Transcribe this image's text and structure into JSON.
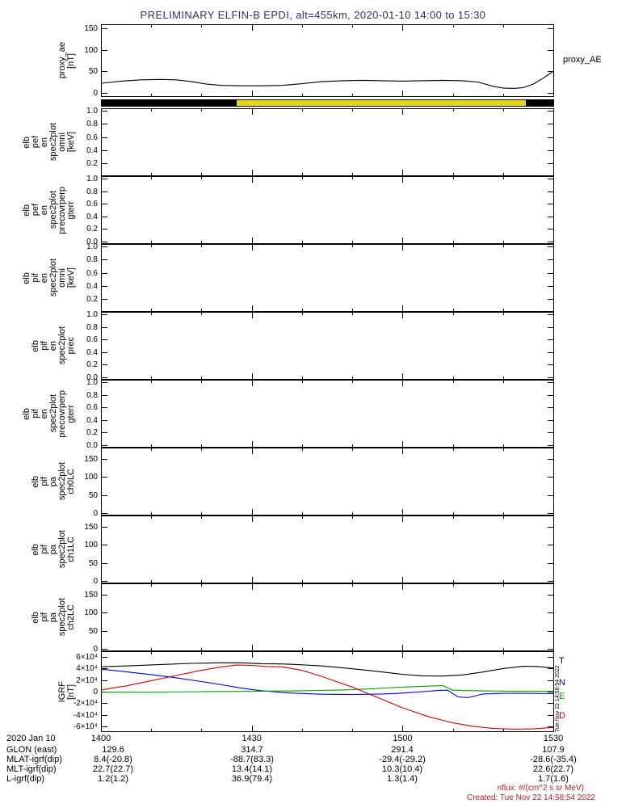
{
  "title": "PRELIMINARY ELFIN-B EPDI, alt=455km, 2020-01-10 14:00 to 15:30",
  "colors": {
    "background": "#ffffff",
    "title": "#2f2f6f",
    "axis": "#000000",
    "band_yellow": "#e8d518",
    "band_black": "#000000",
    "trace_T": "#000000",
    "trace_N": "#0000e0",
    "trace_E": "#00a000",
    "trace_D": "#cc0000",
    "footer_note": "#b22222"
  },
  "x_axis": {
    "date_label": "2020 Jan 10",
    "ticks": [
      "1400",
      "1430",
      "1500",
      "1530"
    ],
    "tick_minutes": [
      0,
      30,
      60,
      90
    ],
    "minor_tick_minutes": [
      10,
      20,
      40,
      50,
      70,
      80
    ],
    "range_minutes": [
      0,
      90
    ]
  },
  "footer_rows": [
    {
      "label": "GLON (east)",
      "values": [
        "129.6",
        "314.7",
        "291.4",
        "107.9"
      ]
    },
    {
      "label": "MLAT-igrf(dip)",
      "values": [
        "8.4(-20.8)",
        "-88.7(83.3)",
        "-29.4(-29.2)",
        "-28.6(-35.4)"
      ]
    },
    {
      "label": "MLT-igrf(dip)",
      "values": [
        "22.7(22.7)",
        "13.4(14.1)",
        "10.3(10.4)",
        "22.6(22.7)"
      ]
    },
    {
      "label": "L-igrf(dip)",
      "values": [
        "1.2(1.2)",
        "36.9(79.4)",
        "1.3(1.4)",
        "1.7(1.6)"
      ]
    }
  ],
  "footer": {
    "nflux": "nflux: #/(cm^2 s sr MeV)",
    "created": "Created: Tue Nov 22 14:58:54 2022",
    "side_timestamp": "Tue Nov 22 14:58:54 2022"
  },
  "chart_data": [
    {
      "id": "proxy-ae",
      "type": "line",
      "ylabel_lines": [
        "proxy_ae",
        "[nT]"
      ],
      "right_label": "proxy_AE",
      "ylim": [
        -10,
        160
      ],
      "yticks": [
        {
          "value": 150,
          "label": "150"
        },
        {
          "value": 100,
          "label": "100"
        },
        {
          "value": 50,
          "label": "50"
        },
        {
          "value": 0,
          "label": "0"
        }
      ],
      "series": [
        {
          "name": "proxy_AE",
          "color": "#000000",
          "x": [
            0,
            4,
            8,
            12,
            15,
            18,
            21,
            24,
            28,
            32,
            36,
            40,
            44,
            48,
            52,
            56,
            60,
            64,
            68,
            72,
            75,
            78,
            80,
            82,
            84,
            86,
            88,
            90
          ],
          "y": [
            22,
            27,
            30,
            31,
            30,
            26,
            20,
            17,
            16,
            16,
            17,
            21,
            26,
            28,
            29,
            28,
            27,
            28,
            29,
            28,
            25,
            15,
            11,
            10,
            12,
            20,
            34,
            50
          ]
        }
      ]
    },
    {
      "id": "status-band",
      "type": "band",
      "segments": [
        {
          "x0": 0,
          "x1": 27,
          "color": "#000000"
        },
        {
          "x0": 27,
          "x1": 84.5,
          "color": "#e8d518"
        },
        {
          "x0": 84.5,
          "x1": 90,
          "color": "#000000"
        }
      ]
    },
    {
      "id": "elb-pef-en-spec2plot-omni",
      "type": "spectrogram-empty",
      "ylabel_lines": [
        "elb",
        "pef",
        "en",
        "spec2plot",
        "omni",
        "[keV]"
      ],
      "ylim": [
        0,
        1.04
      ],
      "yticks": [
        {
          "value": 1.0,
          "label": "1.0"
        },
        {
          "value": 0.8,
          "label": "0.8"
        },
        {
          "value": 0.6,
          "label": "0.6"
        },
        {
          "value": 0.4,
          "label": "0.4"
        },
        {
          "value": 0.2,
          "label": "0.2"
        }
      ]
    },
    {
      "id": "elb-pef-en-spec2plot-precovrperp-gterr",
      "type": "spectrogram-empty",
      "ylabel_lines": [
        "elb",
        "pef",
        "en",
        "spec2plot",
        "precovrperp",
        "gterr"
      ],
      "ylim": [
        -0.04,
        1.04
      ],
      "yticks": [
        {
          "value": 1.0,
          "label": "1.0"
        },
        {
          "value": 0.8,
          "label": "0.8"
        },
        {
          "value": 0.6,
          "label": "0.6"
        },
        {
          "value": 0.4,
          "label": "0.4"
        },
        {
          "value": 0.2,
          "label": "0.2"
        },
        {
          "value": 0.0,
          "label": "0.0"
        }
      ]
    },
    {
      "id": "elb-pif-en-spec2plot-omni",
      "type": "spectrogram-empty",
      "ylabel_lines": [
        "elb",
        "pif",
        "en",
        "spec2plot",
        "omni",
        "[keV]"
      ],
      "ylim": [
        0,
        1.04
      ],
      "yticks": [
        {
          "value": 1.0,
          "label": "1.0"
        },
        {
          "value": 0.8,
          "label": "0.8"
        },
        {
          "value": 0.6,
          "label": "0.6"
        },
        {
          "value": 0.4,
          "label": "0.4"
        },
        {
          "value": 0.2,
          "label": "0.2"
        }
      ]
    },
    {
      "id": "elb-pif-en-spec2plot-prec",
      "type": "spectrogram-empty",
      "ylabel_lines": [
        "elb",
        "pif",
        "en",
        "spec2plot",
        "prec"
      ],
      "ylim": [
        -0.04,
        1.04
      ],
      "yticks": [
        {
          "value": 1.0,
          "label": "1.0"
        },
        {
          "value": 0.8,
          "label": "0.8"
        },
        {
          "value": 0.6,
          "label": "0.6"
        },
        {
          "value": 0.4,
          "label": "0.4"
        },
        {
          "value": 0.2,
          "label": "0.2"
        },
        {
          "value": 0.0,
          "label": "0.0"
        }
      ]
    },
    {
      "id": "elb-pif-en-spec2plot-precovrperp-gterr",
      "type": "spectrogram-empty",
      "ylabel_lines": [
        "elb",
        "pif",
        "en",
        "spec2plot",
        "precovrperp",
        "gterr"
      ],
      "ylim": [
        -0.04,
        1.04
      ],
      "yticks": [
        {
          "value": 1.0,
          "label": "1.0"
        },
        {
          "value": 0.8,
          "label": "0.8"
        },
        {
          "value": 0.6,
          "label": "0.6"
        },
        {
          "value": 0.4,
          "label": "0.4"
        },
        {
          "value": 0.2,
          "label": "0.2"
        },
        {
          "value": 0.0,
          "label": "0.0"
        }
      ]
    },
    {
      "id": "elb-pif-pa-spec2plot-ch0LC",
      "type": "spectrogram-empty",
      "ylabel_lines": [
        "elb",
        "pif",
        "pa",
        "spec2plot",
        "ch0LC"
      ],
      "ylim": [
        -6,
        180
      ],
      "yticks": [
        {
          "value": 150,
          "label": "150"
        },
        {
          "value": 100,
          "label": "100"
        },
        {
          "value": 50,
          "label": "50"
        },
        {
          "value": 0,
          "label": "0"
        }
      ]
    },
    {
      "id": "elb-pif-pa-spec2plot-ch1LC",
      "type": "spectrogram-empty",
      "ylabel_lines": [
        "elb",
        "pif",
        "pa",
        "spec2plot",
        "ch1LC"
      ],
      "ylim": [
        -6,
        180
      ],
      "yticks": [
        {
          "value": 150,
          "label": "150"
        },
        {
          "value": 100,
          "label": "100"
        },
        {
          "value": 50,
          "label": "50"
        },
        {
          "value": 0,
          "label": "0"
        }
      ]
    },
    {
      "id": "elb-pif-pa-spec2plot-ch2LC",
      "type": "spectrogram-empty",
      "ylabel_lines": [
        "elb",
        "pif",
        "pa",
        "spec2plot",
        "ch2LC"
      ],
      "ylim": [
        -6,
        180
      ],
      "yticks": [
        {
          "value": 150,
          "label": "150"
        },
        {
          "value": 100,
          "label": "100"
        },
        {
          "value": 50,
          "label": "50"
        },
        {
          "value": 0,
          "label": "0"
        }
      ]
    },
    {
      "id": "igrf",
      "type": "line",
      "ylabel_lines": [
        "IGRF",
        "[nT]"
      ],
      "ylim": [
        -70000,
        70000
      ],
      "yticks": [
        {
          "value": 60000,
          "label": "6×10⁴"
        },
        {
          "value": 40000,
          "label": "4×10⁴"
        },
        {
          "value": 20000,
          "label": "2×10⁴"
        },
        {
          "value": 0,
          "label": "0"
        },
        {
          "value": -20000,
          "label": "-2×10⁴"
        },
        {
          "value": -40000,
          "label": "-4×10⁴"
        },
        {
          "value": -60000,
          "label": "-6×10⁴"
        }
      ],
      "legend": [
        {
          "label": "T",
          "color": "#000000",
          "pos": 0.12
        },
        {
          "label": "N",
          "color": "#0000e0",
          "pos": 0.39
        },
        {
          "label": "E",
          "color": "#00a000",
          "pos": 0.56
        },
        {
          "label": "D",
          "color": "#cc0000",
          "pos": 0.8
        }
      ],
      "series": [
        {
          "name": "T",
          "color": "#000000",
          "x": [
            0,
            6,
            12,
            18,
            24,
            28,
            32,
            36,
            40,
            44,
            48,
            52,
            56,
            60,
            64,
            68,
            72,
            76,
            80,
            84,
            87,
            90
          ],
          "y": [
            43000,
            45000,
            47000,
            49000,
            50000,
            50000,
            48500,
            48000,
            46500,
            44500,
            41500,
            38000,
            34000,
            30000,
            27500,
            27000,
            29000,
            34000,
            40000,
            44000,
            43500,
            41000
          ]
        },
        {
          "name": "N",
          "color": "#0000e0",
          "x": [
            0,
            5,
            10,
            15,
            20,
            25,
            28,
            31,
            34,
            38,
            44,
            50,
            56,
            60,
            64,
            67,
            69,
            71,
            73,
            76,
            80,
            85,
            90
          ],
          "y": [
            39000,
            34500,
            29500,
            24000,
            17500,
            10500,
            6000,
            2500,
            0,
            -2500,
            -4500,
            -5000,
            -4000,
            -2500,
            0,
            2000,
            2500,
            -9000,
            -10500,
            -4000,
            -3000,
            -3000,
            -3500
          ]
        },
        {
          "name": "E",
          "color": "#00a000",
          "x": [
            0,
            10,
            20,
            30,
            40,
            48,
            54,
            58,
            62,
            66,
            68,
            70,
            72,
            76,
            82,
            90
          ],
          "y": [
            -1000,
            -1000,
            0,
            500,
            1500,
            3000,
            5000,
            7000,
            8500,
            10000,
            10500,
            2500,
            2000,
            1200,
            800,
            500
          ]
        },
        {
          "name": "D",
          "color": "#cc0000",
          "x": [
            0,
            5,
            10,
            15,
            20,
            24,
            27,
            30,
            33,
            36,
            40,
            44,
            47,
            50,
            55,
            60,
            65,
            70,
            74,
            78,
            82,
            86,
            90
          ],
          "y": [
            3000,
            10000,
            19000,
            28000,
            37000,
            43000,
            46000,
            45500,
            43500,
            43000,
            37000,
            26000,
            17000,
            8000,
            -10000,
            -28000,
            -43000,
            -54000,
            -60000,
            -63500,
            -65000,
            -64500,
            -62000
          ]
        }
      ]
    }
  ]
}
